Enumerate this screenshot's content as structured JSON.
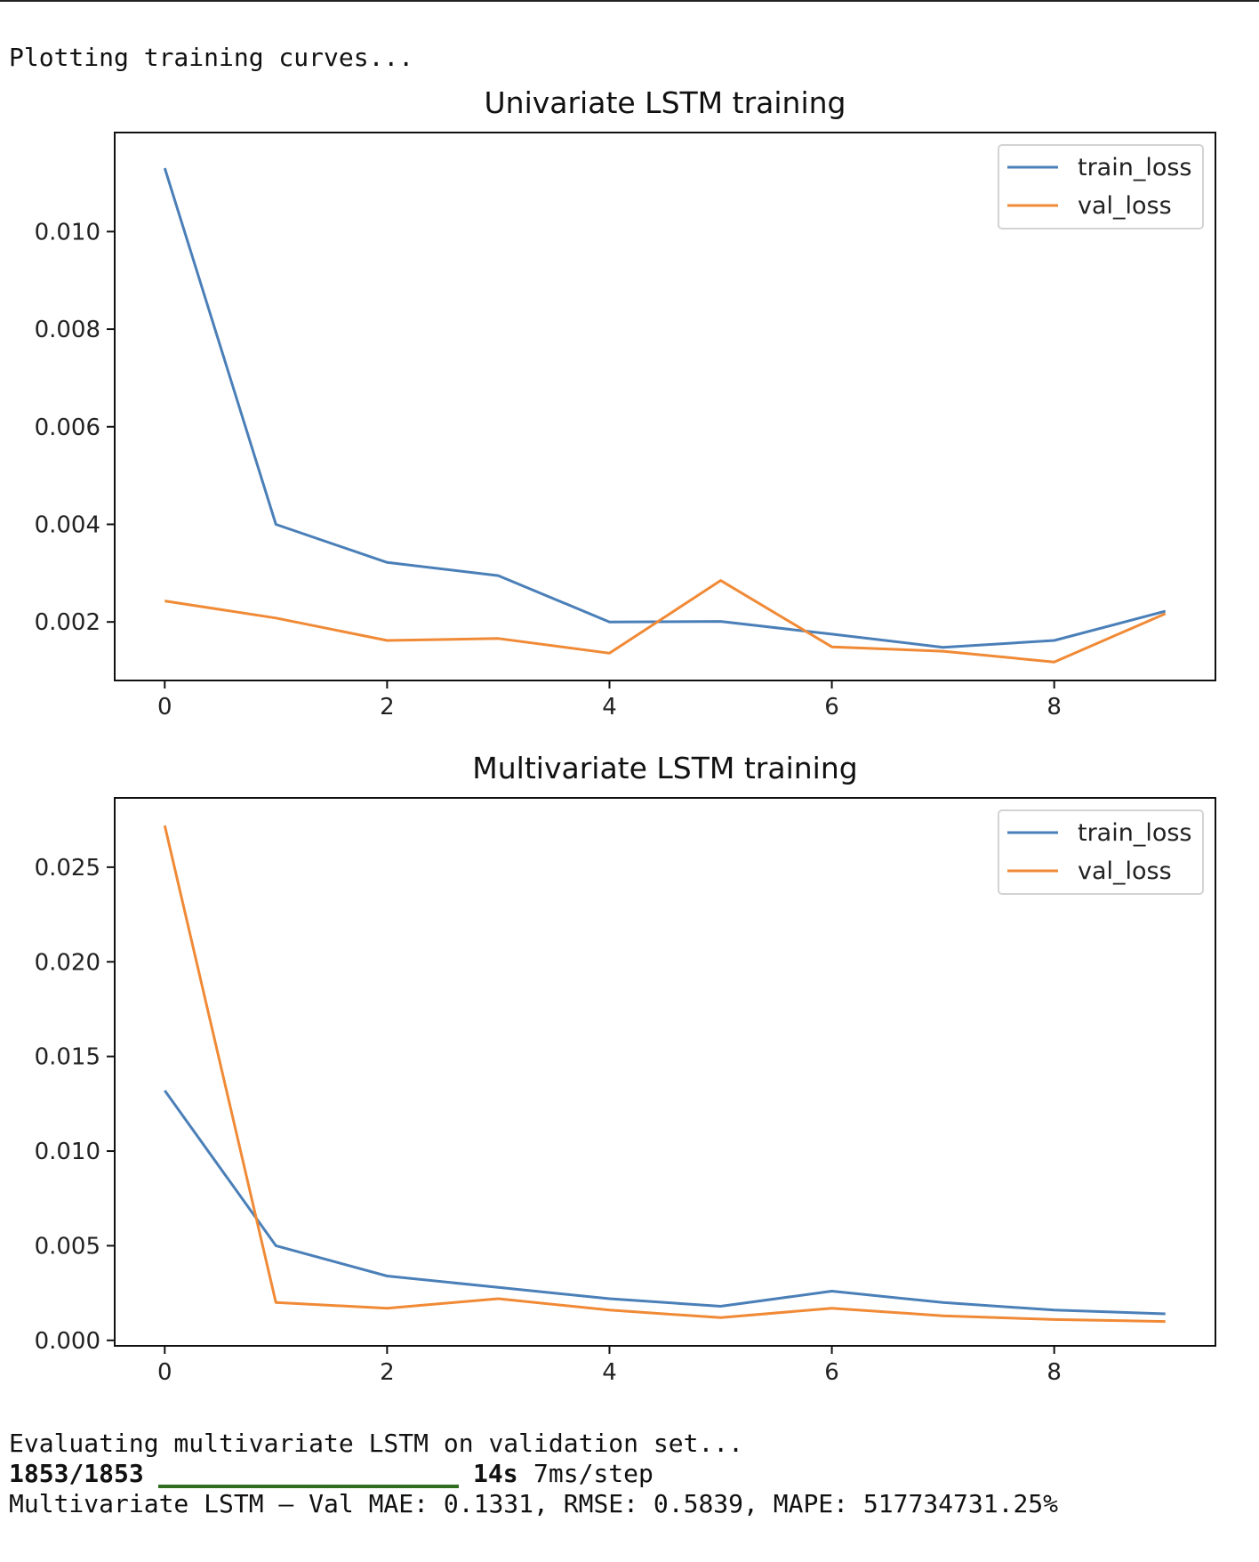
{
  "output": {
    "line1": "Plotting training curves...",
    "eval_line": "Evaluating multivariate LSTM on validation set...",
    "progress_count": "1853/1853",
    "progress_time": "14s",
    "progress_rate": "7ms/step",
    "progress_fraction": 1.0,
    "result_line": "Multivariate LSTM — Val MAE: 0.1331, RMSE: 0.5839, MAPE: 517734731.25%"
  },
  "colors": {
    "train": "#4a7fb8",
    "val": "#f08a36",
    "progress": "#2e6e1e"
  },
  "chart_data": [
    {
      "type": "line",
      "title": "Univariate LSTM training",
      "xlabel": "",
      "ylabel": "",
      "x": [
        0,
        1,
        2,
        3,
        4,
        5,
        6,
        7,
        8,
        9
      ],
      "xlim": [
        -0.45,
        9.45
      ],
      "ylim": [
        0.0008,
        0.01203
      ],
      "xticks": [
        0,
        2,
        4,
        6,
        8
      ],
      "yticks": [
        0.002,
        0.004,
        0.006,
        0.008,
        0.01
      ],
      "ytick_labels": [
        "0.002",
        "0.004",
        "0.006",
        "0.008",
        "0.010"
      ],
      "grid": false,
      "legend": "top-right",
      "series": [
        {
          "name": "train_loss",
          "values": [
            0.0113,
            0.004,
            0.00322,
            0.00295,
            0.002,
            0.00201,
            0.00175,
            0.00148,
            0.00162,
            0.00222
          ]
        },
        {
          "name": "val_loss",
          "values": [
            0.00243,
            0.00208,
            0.00162,
            0.00166,
            0.00136,
            0.00285,
            0.00149,
            0.0014,
            0.00118,
            0.00217
          ]
        }
      ]
    },
    {
      "type": "line",
      "title": "Multivariate LSTM training",
      "xlabel": "",
      "ylabel": "",
      "x": [
        0,
        1,
        2,
        3,
        4,
        5,
        6,
        7,
        8,
        9
      ],
      "xlim": [
        -0.45,
        9.45
      ],
      "ylim": [
        -0.00029,
        0.02866
      ],
      "xticks": [
        0,
        2,
        4,
        6,
        8
      ],
      "yticks": [
        0.0,
        0.005,
        0.01,
        0.015,
        0.02,
        0.025
      ],
      "ytick_labels": [
        "0.000",
        "0.005",
        "0.010",
        "0.015",
        "0.020",
        "0.025"
      ],
      "grid": false,
      "legend": "top-right",
      "series": [
        {
          "name": "train_loss",
          "values": [
            0.0132,
            0.005,
            0.0034,
            0.0028,
            0.0022,
            0.0018,
            0.0026,
            0.002,
            0.0016,
            0.0014
          ]
        },
        {
          "name": "val_loss",
          "values": [
            0.0272,
            0.002,
            0.0017,
            0.0022,
            0.0016,
            0.0012,
            0.0017,
            0.0013,
            0.0011,
            0.001
          ]
        }
      ]
    }
  ]
}
